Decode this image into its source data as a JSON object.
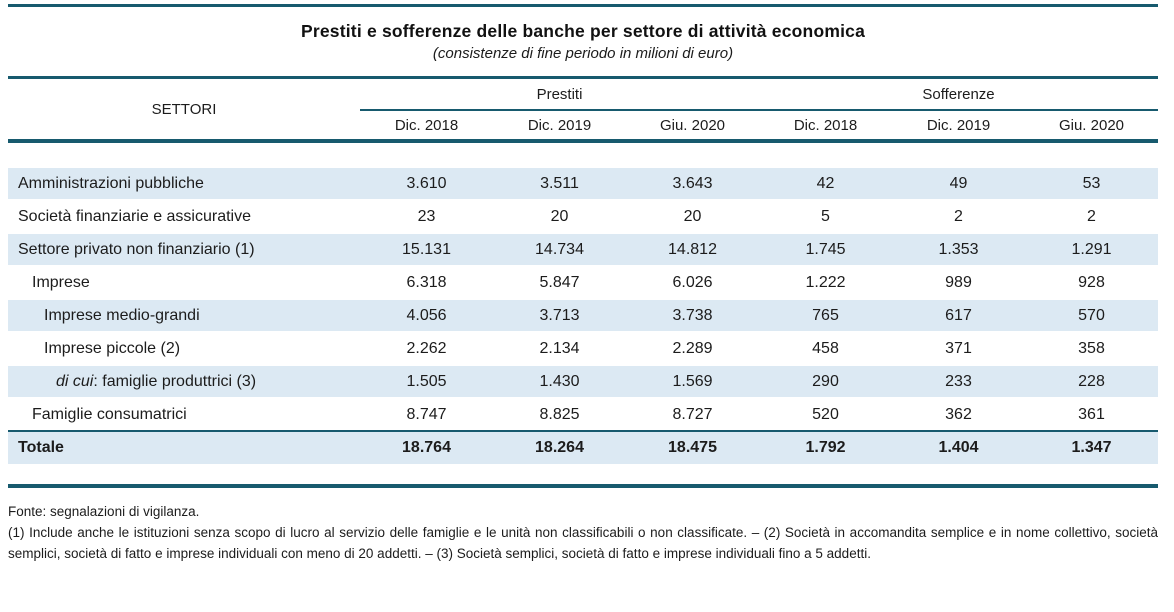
{
  "title": "Prestiti e sofferenze delle banche per settore di attività economica",
  "subtitle": "(consistenze di fine periodo in milioni di euro)",
  "colors": {
    "rule_accent": "#175a6e",
    "row_stripe": "#dce9f3",
    "text": "#1c1c1c"
  },
  "table": {
    "sectors_label": "SETTORI",
    "groups": [
      {
        "label": "Prestiti",
        "columns": [
          "Dic. 2018",
          "Dic. 2019",
          "Giu. 2020"
        ]
      },
      {
        "label": "Sofferenze",
        "columns": [
          "Dic. 2018",
          "Dic. 2019",
          "Giu. 2020"
        ]
      }
    ],
    "rows": [
      {
        "label": "Amministrazioni pubbliche",
        "values": [
          "3.610",
          "3.511",
          "3.643",
          "42",
          "49",
          "53"
        ]
      },
      {
        "label": "Società finanziarie e assicurative",
        "values": [
          "23",
          "20",
          "20",
          "5",
          "2",
          "2"
        ]
      },
      {
        "label": "Settore privato non finanziario (1)",
        "values": [
          "15.131",
          "14.734",
          "14.812",
          "1.745",
          "1.353",
          "1.291"
        ]
      },
      {
        "label": "Imprese",
        "values": [
          "6.318",
          "5.847",
          "6.026",
          "1.222",
          "989",
          "928"
        ]
      },
      {
        "label": "Imprese medio-grandi",
        "values": [
          "4.056",
          "3.713",
          "3.738",
          "765",
          "617",
          "570"
        ]
      },
      {
        "label": "Imprese piccole (2)",
        "values": [
          "2.262",
          "2.134",
          "2.289",
          "458",
          "371",
          "358"
        ]
      },
      {
        "label_italic": "di cui",
        "label_rest": ": famiglie produttrici (3)",
        "values": [
          "1.505",
          "1.430",
          "1.569",
          "290",
          "233",
          "228"
        ]
      },
      {
        "label": "Famiglie consumatrici",
        "values": [
          "8.747",
          "8.825",
          "8.727",
          "520",
          "362",
          "361"
        ]
      },
      {
        "label": "Totale",
        "values": [
          "18.764",
          "18.264",
          "18.475",
          "1.792",
          "1.404",
          "1.347"
        ]
      }
    ]
  },
  "footer": {
    "source": "Fonte: segnalazioni di vigilanza.",
    "notes": "(1) Include anche le istituzioni senza scopo di lucro al servizio delle famiglie e le unità non classificabili o non classificate. – (2) Società in accomandita semplice e in nome collettivo, società semplici, società di fatto e imprese individuali con meno di 20 addetti. – (3) Società semplici, società di fatto e imprese individuali fino a 5 addetti."
  }
}
